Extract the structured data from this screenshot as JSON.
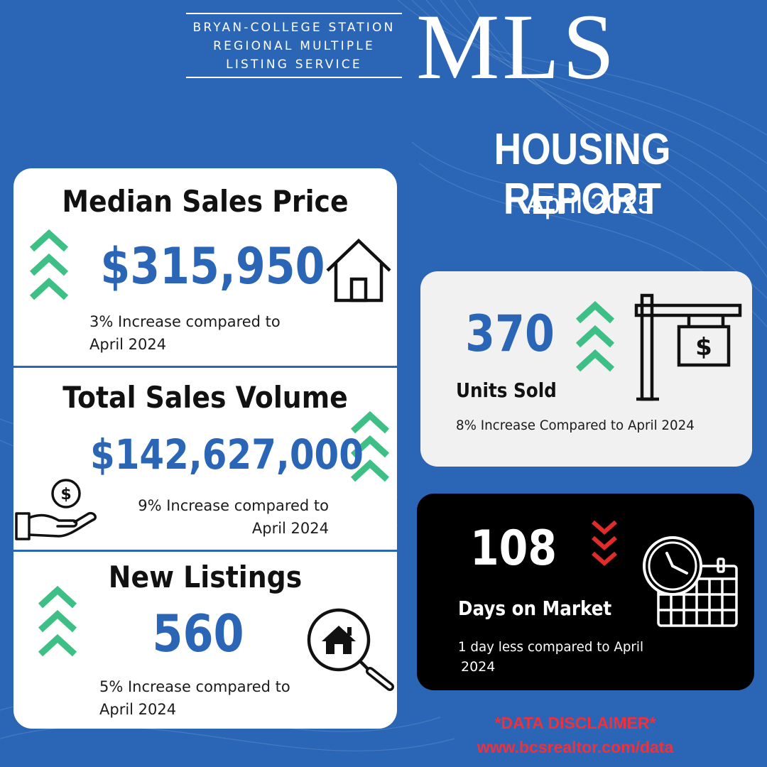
{
  "header": {
    "org_lines": [
      "BRYAN-COLLEGE STATION",
      "REGIONAL MULTIPLE",
      "LISTING SERVICE"
    ],
    "logo_text": "MLS",
    "title": "HOUSING REPORT",
    "period": "April 2025"
  },
  "colors": {
    "background": "#2b66b6",
    "accent_blue": "#2b66b6",
    "increase_green": "#3dbf86",
    "decrease_red": "#e02b2b",
    "disclaimer_red": "#f0303a"
  },
  "metrics": {
    "median_price": {
      "heading": "Median Sales Price",
      "value": "$315,950",
      "note_line1": "3% Increase compared to",
      "note_line2": "April 2024",
      "trend": "up",
      "icon": "house-icon"
    },
    "sales_volume": {
      "heading": "Total Sales Volume",
      "value": "$142,627,000",
      "note_line1": "9% Increase compared to",
      "note_line2": "April 2024",
      "trend": "up",
      "icon": "money-hand-icon"
    },
    "new_listings": {
      "heading": "New Listings",
      "value": "560",
      "note_line1": "5% Increase compared to",
      "note_line2": "April 2024",
      "trend": "up",
      "icon": "house-search-icon"
    },
    "units_sold": {
      "value": "370",
      "label": "Units Sold",
      "note": "8% Increase Compared to April 2024",
      "trend": "up",
      "icon": "for-sale-sign-icon",
      "sign_symbol": "$"
    },
    "days_on_market": {
      "value": "108",
      "label": "Days on Market",
      "note_line1": "1 day less compared to April",
      "note_line2": "2024",
      "trend": "down",
      "icon": "clock-calendar-icon"
    }
  },
  "footer": {
    "disclaimer": "*DATA DISCLAIMER*",
    "url": "www.bcsrealtor.com/data"
  }
}
